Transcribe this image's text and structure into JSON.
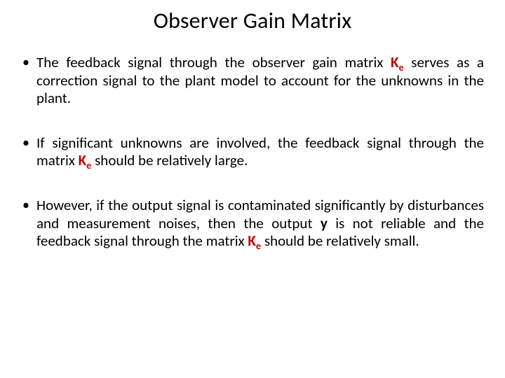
{
  "title": "Observer Gain Matrix",
  "symbols": {
    "K": "K",
    "e": "e",
    "y": "y"
  },
  "colors": {
    "accent": "#c00000",
    "text": "#000000",
    "background": "#ffffff"
  },
  "typography": {
    "title_fontsize": 32,
    "body_fontsize": 21,
    "font_family": "Calibri"
  },
  "bullets": [
    {
      "pre": "The feedback signal through the observer gain matrix ",
      "post": " serves as a correction signal to the plant model to account for the unknowns in the plant."
    },
    {
      "pre": "If significant unknowns are involved, the feedback signal through the matrix ",
      "post": " should be relatively large."
    },
    {
      "pre": "However, if the output signal is contaminated significantly by disturbances and measurement noises, then the output ",
      "mid": " is not reliable and the feedback signal through the matrix ",
      "post": " should be relatively small."
    }
  ]
}
